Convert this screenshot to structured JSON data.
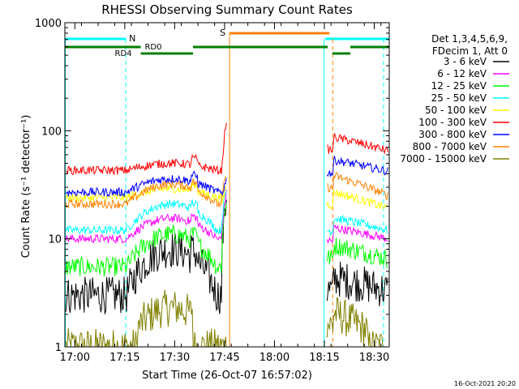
{
  "chart_data": {
    "type": "line",
    "title": "RHESSI Observing Summary Count Rates",
    "xlabel": "Start Time (26-Oct-07 16:57:02)",
    "ylabel": "Count Rate (s⁻¹ detector⁻¹)",
    "x_unit": "minutes after 16:57:02",
    "xlim": [
      0,
      97.5
    ],
    "ylim": [
      1,
      1000
    ],
    "yscale": "log",
    "xticks": [
      {
        "t": 3,
        "label": "17:00"
      },
      {
        "t": 18,
        "label": "17:15"
      },
      {
        "t": 33,
        "label": "17:30"
      },
      {
        "t": 48,
        "label": "17:45"
      },
      {
        "t": 63,
        "label": "18:00"
      },
      {
        "t": 78,
        "label": "18:15"
      },
      {
        "t": 93,
        "label": "18:30"
      }
    ],
    "yticks": [
      {
        "v": 1,
        "label": "1"
      },
      {
        "v": 10,
        "label": "10"
      },
      {
        "v": 100,
        "label": "100"
      },
      {
        "v": 1000,
        "label": "1000"
      }
    ],
    "legend": {
      "header": [
        "Det 1,3,4,5,6,9,",
        "FDecim 1, Att 0"
      ],
      "position": "right"
    },
    "series": [
      {
        "name": "3 - 6 keV",
        "color": "#000000",
        "pre": 3,
        "peak": 8,
        "flare": 25,
        "post": 4.5,
        "post_end": 3.3
      },
      {
        "name": "6 - 12 keV",
        "color": "#ff00ff",
        "pre": 10,
        "peak": 15.5,
        "flare": 27,
        "post": 13,
        "post_end": 10
      },
      {
        "name": "12 - 25 keV",
        "color": "#00ff00",
        "pre": 5.5,
        "peak": 11,
        "flare": 24,
        "post": 9,
        "post_end": 6.5
      },
      {
        "name": "25 - 50 keV",
        "color": "#00ffff",
        "pre": 12,
        "peak": 21,
        "flare": 28,
        "post": 16,
        "post_end": 12
      },
      {
        "name": "50 - 100 keV",
        "color": "#ffff00",
        "pre": 24,
        "peak": 29,
        "flare": 32,
        "post": 28,
        "post_end": 19
      },
      {
        "name": "100 - 300 keV",
        "color": "#ff0000",
        "pre": 43,
        "peak": 50,
        "flare": 130,
        "post": 90,
        "post_end": 65
      },
      {
        "name": "300 - 800 keV",
        "color": "#0000ff",
        "pre": 27,
        "peak": 36,
        "flare": 35,
        "post": 55,
        "post_end": 42
      },
      {
        "name": "800 - 7000 keV",
        "color": "#ff8000",
        "pre": 21,
        "peak": 32,
        "flare": 40,
        "post": 40,
        "post_end": 25
      },
      {
        "name": "7000 - 15000 keV",
        "color": "#808000",
        "pre": 1,
        "peak": 2.3,
        "flare": 3,
        "post": 2.2,
        "post_end": 1
      }
    ],
    "gaps": [
      [
        48.6,
        78.8
      ]
    ],
    "annotations": [
      {
        "label": "N",
        "color": "#00ffff",
        "t": 18.3
      },
      {
        "label": "S",
        "color": "#ff8000",
        "t": 49.5
      },
      {
        "label": "RD0",
        "color": "#008000"
      },
      {
        "label": "RD4",
        "color": "#008000"
      }
    ],
    "footer": "16-Oct-2021 20:20"
  }
}
